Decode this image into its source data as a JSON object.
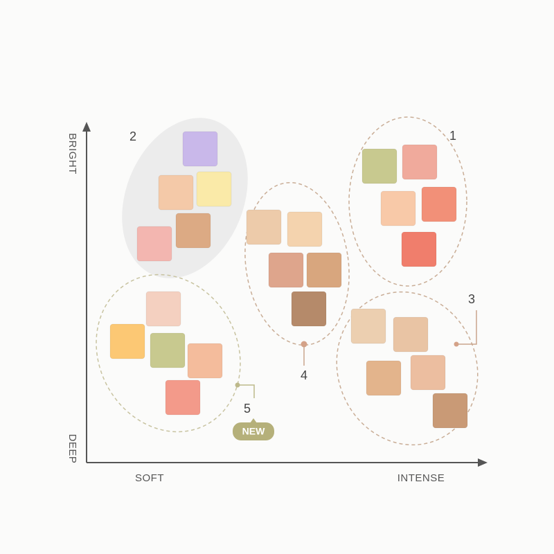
{
  "axes": {
    "y_top": "BRIGHT",
    "y_bottom": "DEEP",
    "x_left": "SOFT",
    "x_right": "INTENSE"
  },
  "groups": [
    {
      "label": "1"
    },
    {
      "label": "2"
    },
    {
      "label": "3"
    },
    {
      "label": "4"
    },
    {
      "label": "5"
    }
  ],
  "badge": "NEW"
}
